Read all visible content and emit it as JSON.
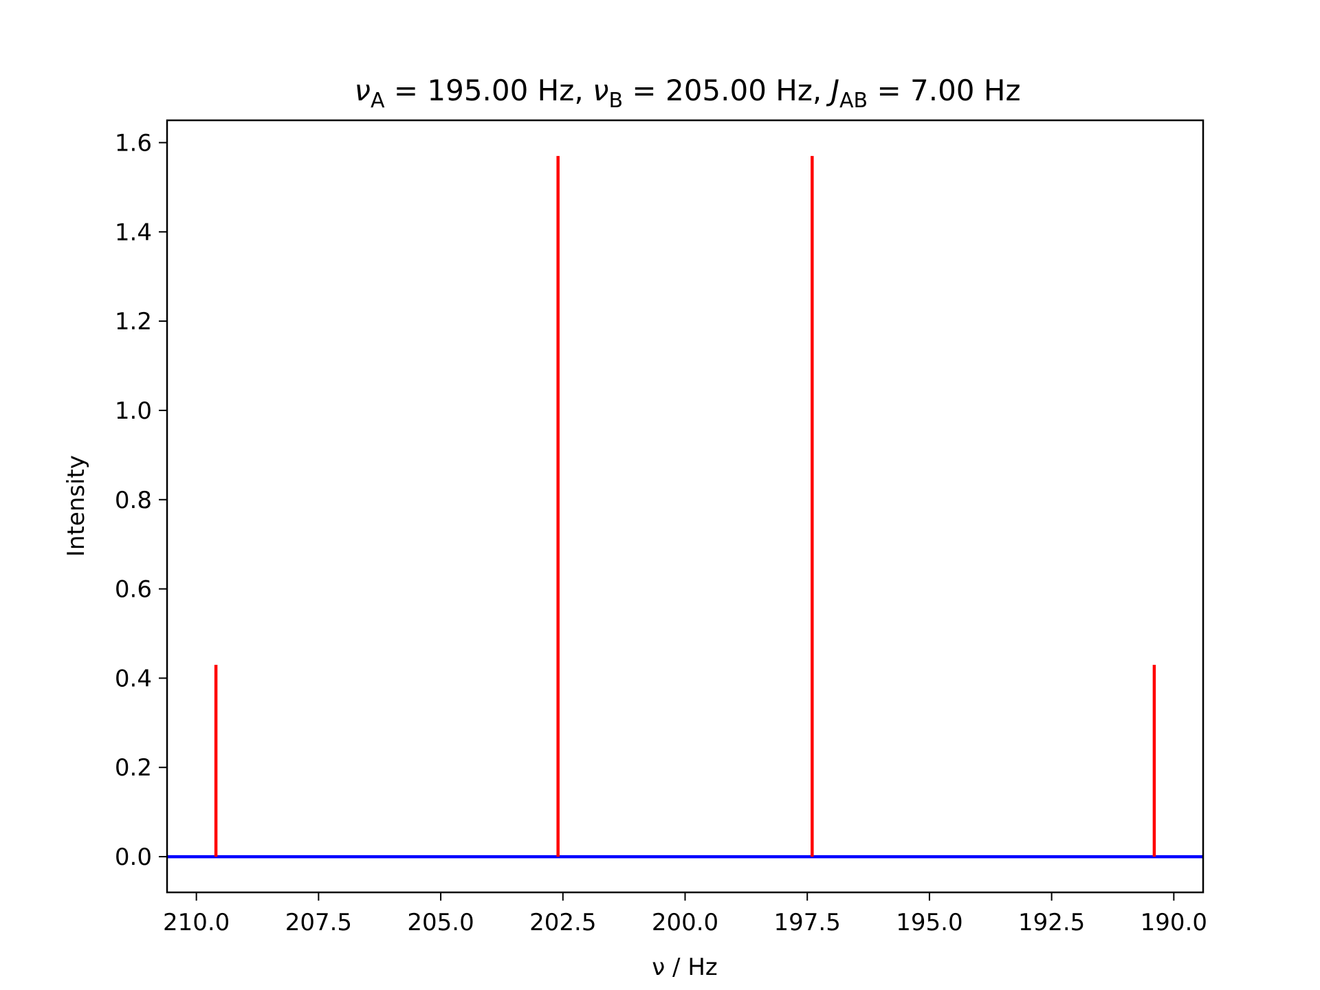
{
  "chart_data": {
    "type": "line",
    "title": {
      "nu_symbol": "ν",
      "a_sub": "A",
      "a_text": " = 195.00 Hz, ",
      "b_sub": "B",
      "b_text": " = 205.00 Hz, ",
      "j_symbol": "J",
      "j_sub": "AB",
      "j_text": " = 7.00 Hz"
    },
    "xlabel": "ν / Hz",
    "ylabel": "Intensity",
    "x_inverted": true,
    "xlim": [
      210.6,
      189.4
    ],
    "ylim": [
      -0.08,
      1.65
    ],
    "xticks": [
      210.0,
      207.5,
      205.0,
      202.5,
      200.0,
      197.5,
      195.0,
      192.5,
      190.0
    ],
    "xtick_labels": [
      "210.0",
      "207.5",
      "205.0",
      "202.5",
      "200.0",
      "197.5",
      "195.0",
      "192.5",
      "190.0"
    ],
    "yticks": [
      0.0,
      0.2,
      0.4,
      0.6,
      0.8,
      1.0,
      1.2,
      1.4,
      1.6
    ],
    "ytick_labels": [
      "0.0",
      "0.2",
      "0.4",
      "0.6",
      "0.8",
      "1.0",
      "1.2",
      "1.4",
      "1.6"
    ],
    "baseline": {
      "y": 0.0,
      "color": "#0000ff"
    },
    "stems": {
      "color": "#ff0000",
      "x": [
        209.6,
        202.6,
        197.4,
        190.4
      ],
      "y": [
        0.43,
        1.57,
        1.57,
        0.43
      ]
    },
    "grid": false,
    "legend": "none"
  }
}
